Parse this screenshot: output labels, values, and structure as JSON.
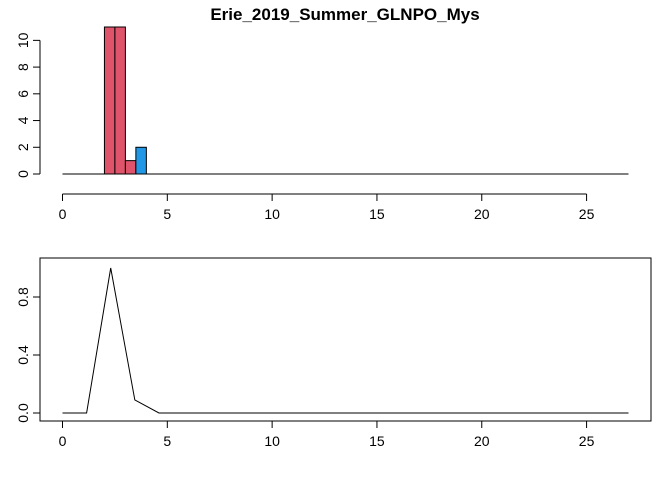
{
  "chart_data": [
    {
      "type": "bar",
      "title": "Erie_2019_Summer_GLNPO_Mys",
      "xlabel": "",
      "ylabel": "",
      "xlim": [
        0,
        27
      ],
      "ylim": [
        0,
        11
      ],
      "x_ticks": [
        "0",
        "5",
        "10",
        "15",
        "20",
        "25"
      ],
      "y_ticks": [
        "0",
        "2",
        "4",
        "6",
        "8",
        "10"
      ],
      "bin_width": 0.5,
      "baseline": {
        "x": [
          0,
          27
        ],
        "y": 0
      },
      "series": [
        {
          "color": "#DF536B",
          "bars": [
            {
              "x": 2.0,
              "value": 11
            },
            {
              "x": 2.5,
              "value": 11
            },
            {
              "x": 3.0,
              "value": 1
            }
          ]
        },
        {
          "color": "#2297E6",
          "bars": [
            {
              "x": 3.5,
              "value": 2
            }
          ]
        }
      ]
    },
    {
      "type": "line",
      "title": "",
      "xlabel": "",
      "ylabel": "",
      "xlim": [
        0,
        27
      ],
      "ylim": [
        0,
        1
      ],
      "x_ticks": [
        "0",
        "5",
        "10",
        "15",
        "20",
        "25"
      ],
      "y_ticks": [
        "0.0",
        "0.4",
        "0.8"
      ],
      "series": [
        {
          "color": "#000000",
          "x": [
            0,
            1.15,
            2.3,
            3.45,
            4.6,
            27
          ],
          "y": [
            0,
            0,
            1.0,
            0.09,
            0,
            0
          ]
        }
      ]
    }
  ]
}
